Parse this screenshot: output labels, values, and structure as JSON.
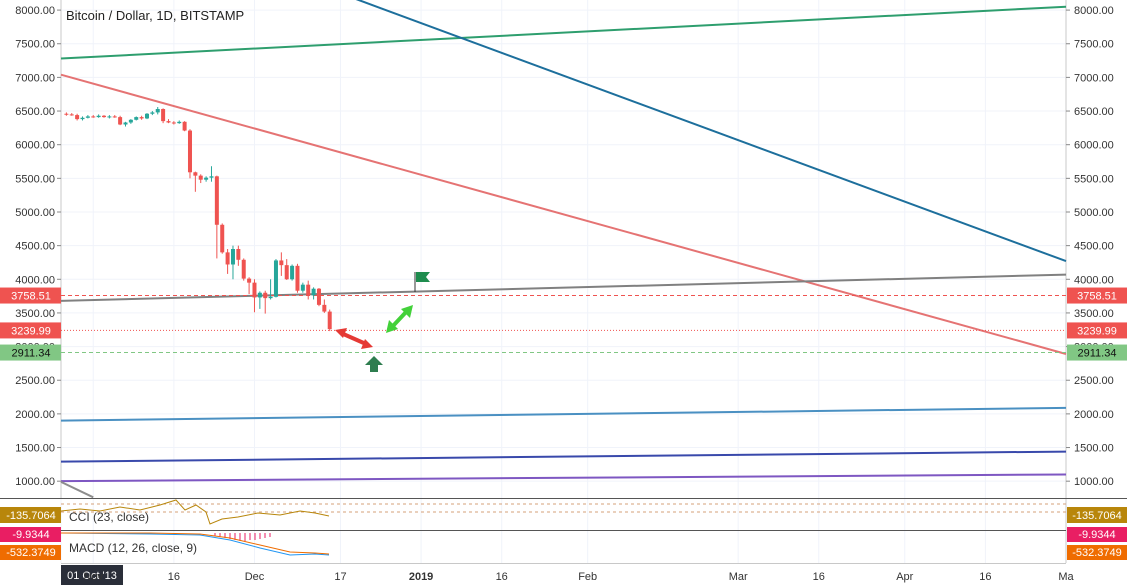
{
  "chart_data": {
    "type": "candlestick",
    "title": "Bitcoin / Dollar, 1D, BITSTAMP",
    "ylim": [
      750,
      8150
    ],
    "y_ticks": [
      "8000.00",
      "7500.00",
      "7000.00",
      "6500.00",
      "6000.00",
      "5500.00",
      "5000.00",
      "4500.00",
      "4000.00",
      "3500.00",
      "3000.00",
      "2500.00",
      "2000.00",
      "1500.00",
      "1000.00"
    ],
    "y_tick_values": [
      8000,
      7500,
      7000,
      6500,
      6000,
      5500,
      5000,
      4500,
      4000,
      3500,
      3000,
      2500,
      2000,
      1500,
      1000
    ],
    "x_ticks": [
      "01 Oct '13",
      "Nov",
      "16",
      "Dec",
      "17",
      "2019",
      "16",
      "Feb",
      "Mar",
      "16",
      "Apr",
      "16",
      "Ma"
    ],
    "x_tick_dates": [
      "2018-10-26",
      "2018-11-01",
      "2018-11-16",
      "2018-12-01",
      "2018-12-17",
      "2019-01-01",
      "2019-01-16",
      "2019-02-01",
      "2019-03-01",
      "2019-03-16",
      "2019-04-01",
      "2019-04-16",
      "2019-05-01"
    ],
    "x_range": [
      "2018-10-26",
      "2019-05-01"
    ],
    "candles": [
      {
        "date": "2018-10-27",
        "open": 6460,
        "high": 6480,
        "low": 6430,
        "close": 6450
      },
      {
        "date": "2018-10-28",
        "open": 6450,
        "high": 6470,
        "low": 6430,
        "close": 6440
      },
      {
        "date": "2018-10-29",
        "open": 6440,
        "high": 6460,
        "low": 6360,
        "close": 6380
      },
      {
        "date": "2018-10-30",
        "open": 6380,
        "high": 6420,
        "low": 6360,
        "close": 6400
      },
      {
        "date": "2018-10-31",
        "open": 6400,
        "high": 6440,
        "low": 6390,
        "close": 6420
      },
      {
        "date": "2018-11-01",
        "open": 6420,
        "high": 6440,
        "low": 6400,
        "close": 6410
      },
      {
        "date": "2018-11-02",
        "open": 6410,
        "high": 6450,
        "low": 6400,
        "close": 6430
      },
      {
        "date": "2018-11-03",
        "open": 6430,
        "high": 6440,
        "low": 6400,
        "close": 6410
      },
      {
        "date": "2018-11-04",
        "open": 6410,
        "high": 6440,
        "low": 6390,
        "close": 6420
      },
      {
        "date": "2018-11-05",
        "open": 6420,
        "high": 6440,
        "low": 6400,
        "close": 6410
      },
      {
        "date": "2018-11-06",
        "open": 6410,
        "high": 6430,
        "low": 6290,
        "close": 6300
      },
      {
        "date": "2018-11-07",
        "open": 6300,
        "high": 6340,
        "low": 6270,
        "close": 6330
      },
      {
        "date": "2018-11-08",
        "open": 6330,
        "high": 6380,
        "low": 6310,
        "close": 6370
      },
      {
        "date": "2018-11-09",
        "open": 6370,
        "high": 6420,
        "low": 6360,
        "close": 6410
      },
      {
        "date": "2018-11-10",
        "open": 6410,
        "high": 6430,
        "low": 6370,
        "close": 6390
      },
      {
        "date": "2018-11-11",
        "open": 6390,
        "high": 6470,
        "low": 6380,
        "close": 6460
      },
      {
        "date": "2018-11-12",
        "open": 6460,
        "high": 6500,
        "low": 6440,
        "close": 6480
      },
      {
        "date": "2018-11-13",
        "open": 6480,
        "high": 6560,
        "low": 6450,
        "close": 6530
      },
      {
        "date": "2018-11-14",
        "open": 6530,
        "high": 6540,
        "low": 6320,
        "close": 6350
      },
      {
        "date": "2018-11-15",
        "open": 6350,
        "high": 6380,
        "low": 6320,
        "close": 6330
      },
      {
        "date": "2018-11-16",
        "open": 6330,
        "high": 6350,
        "low": 6300,
        "close": 6320
      },
      {
        "date": "2018-11-17",
        "open": 6320,
        "high": 6360,
        "low": 6310,
        "close": 6340
      },
      {
        "date": "2018-11-18",
        "open": 6340,
        "high": 6350,
        "low": 6200,
        "close": 6210
      },
      {
        "date": "2018-11-19",
        "open": 6210,
        "high": 6230,
        "low": 5500,
        "close": 5590
      },
      {
        "date": "2018-11-20",
        "open": 5590,
        "high": 5600,
        "low": 5300,
        "close": 5540
      },
      {
        "date": "2018-11-21",
        "open": 5540,
        "high": 5560,
        "low": 5430,
        "close": 5480
      },
      {
        "date": "2018-11-22",
        "open": 5480,
        "high": 5530,
        "low": 5450,
        "close": 5510
      },
      {
        "date": "2018-11-23",
        "open": 5510,
        "high": 5680,
        "low": 5450,
        "close": 5530
      },
      {
        "date": "2018-11-24",
        "open": 5530,
        "high": 5540,
        "low": 4310,
        "close": 4810
      },
      {
        "date": "2018-11-25",
        "open": 4810,
        "high": 4830,
        "low": 4380,
        "close": 4400
      },
      {
        "date": "2018-11-26",
        "open": 4400,
        "high": 4450,
        "low": 4080,
        "close": 4220
      },
      {
        "date": "2018-11-27",
        "open": 4220,
        "high": 4500,
        "low": 4000,
        "close": 4450
      },
      {
        "date": "2018-11-28",
        "open": 4450,
        "high": 4500,
        "low": 4200,
        "close": 4290
      },
      {
        "date": "2018-11-29",
        "open": 4290,
        "high": 4310,
        "low": 3980,
        "close": 4010
      },
      {
        "date": "2018-11-30",
        "open": 4010,
        "high": 4030,
        "low": 3780,
        "close": 3950
      },
      {
        "date": "2018-12-01",
        "open": 3950,
        "high": 4000,
        "low": 3510,
        "close": 3730
      },
      {
        "date": "2018-12-02",
        "open": 3730,
        "high": 3820,
        "low": 3560,
        "close": 3800
      },
      {
        "date": "2018-12-03",
        "open": 3800,
        "high": 3830,
        "low": 3490,
        "close": 3720
      },
      {
        "date": "2018-12-04",
        "open": 3720,
        "high": 4000,
        "low": 3700,
        "close": 3740
      },
      {
        "date": "2018-12-05",
        "open": 3740,
        "high": 4300,
        "low": 3730,
        "close": 4280
      },
      {
        "date": "2018-12-06",
        "open": 4280,
        "high": 4400,
        "low": 4050,
        "close": 4210
      },
      {
        "date": "2018-12-07",
        "open": 4210,
        "high": 4300,
        "low": 3990,
        "close": 4000
      },
      {
        "date": "2018-12-08",
        "open": 4000,
        "high": 4220,
        "low": 3980,
        "close": 4200
      },
      {
        "date": "2018-12-09",
        "open": 4200,
        "high": 4230,
        "low": 3800,
        "close": 3830
      },
      {
        "date": "2018-12-10",
        "open": 3830,
        "high": 3950,
        "low": 3800,
        "close": 3920
      },
      {
        "date": "2018-12-11",
        "open": 3920,
        "high": 3980,
        "low": 3700,
        "close": 3760
      },
      {
        "date": "2018-12-12",
        "open": 3760,
        "high": 3880,
        "low": 3700,
        "close": 3860
      },
      {
        "date": "2018-12-13",
        "open": 3860,
        "high": 3870,
        "low": 3600,
        "close": 3620
      },
      {
        "date": "2018-12-14",
        "open": 3620,
        "high": 3700,
        "low": 3500,
        "close": 3520
      },
      {
        "date": "2018-12-15",
        "open": 3520,
        "high": 3550,
        "low": 3230,
        "close": 3260
      }
    ],
    "price_labels": [
      {
        "text": "3758.51",
        "value": 3758.51,
        "color": "#ef5350",
        "style": "dashed"
      },
      {
        "text": "3239.99",
        "value": 3239.99,
        "color": "#ef5350",
        "style": "dotted"
      },
      {
        "text": "2911.34",
        "value": 2911.34,
        "color": "#81c784",
        "style": "dashed"
      }
    ],
    "trendlines": [
      {
        "color": "#2e9e6e",
        "from": [
          "2018-10-26",
          7280
        ],
        "to": [
          "2019-05-01",
          8050
        ]
      },
      {
        "color": "#1d6f9c",
        "from": [
          "2018-12-18",
          8220
        ],
        "to": [
          "2019-05-01",
          4270
        ]
      },
      {
        "color": "#e57373",
        "from": [
          "2018-10-26",
          7040
        ],
        "to": [
          "2019-05-01",
          2890
        ]
      },
      {
        "color": "#808080",
        "from": [
          "2018-10-26",
          3680
        ],
        "to": [
          "2019-05-01",
          4070
        ]
      },
      {
        "color": "#4a90c2",
        "from": [
          "2018-10-26",
          1900
        ],
        "to": [
          "2019-05-01",
          2090
        ]
      },
      {
        "color": "#3949ab",
        "from": [
          "2018-10-26",
          1290
        ],
        "to": [
          "2019-05-01",
          1440
        ]
      },
      {
        "color": "#7e57c2",
        "from": [
          "2018-10-26",
          1000
        ],
        "to": [
          "2019-05-01",
          1100
        ]
      },
      {
        "color": "#8d8d8d",
        "from": [
          "2018-10-26",
          990
        ],
        "to": [
          "2018-11-01",
          760
        ]
      }
    ],
    "indicators": [
      {
        "name": "CCI (23, close)",
        "value": "-135.7064",
        "color": "#b8860b"
      },
      {
        "name": "MACD (12, 26, close, 9)",
        "values": [
          "-9.9344",
          "-532.3749"
        ],
        "colors": [
          "#e91e63",
          "#ef6c00"
        ]
      }
    ],
    "colors": {
      "up": "#26a69a",
      "down": "#ef5350"
    }
  }
}
